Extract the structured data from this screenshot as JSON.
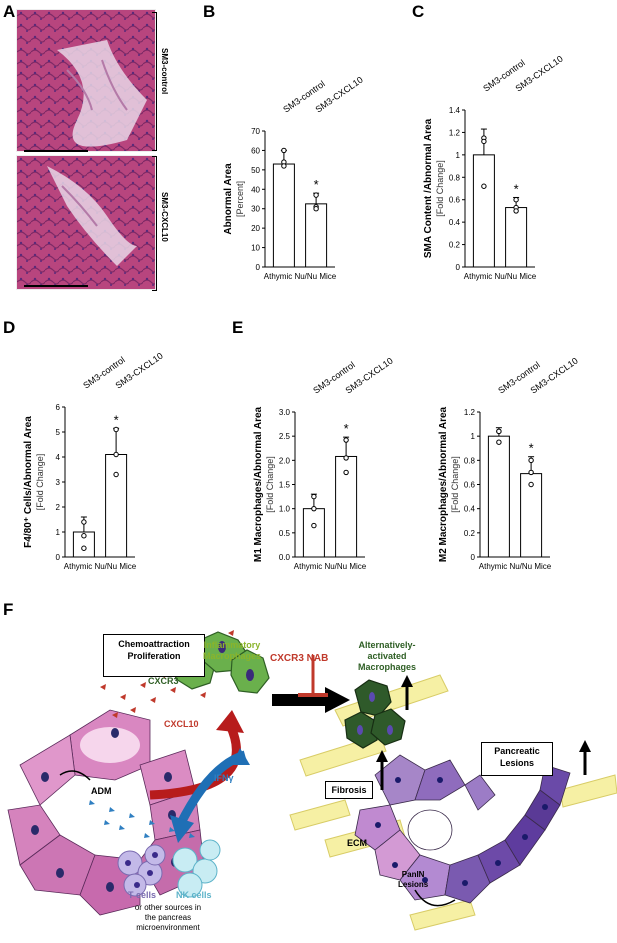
{
  "panels": {
    "A": "A",
    "B": "B",
    "C": "C",
    "D": "D",
    "E": "E",
    "F": "F"
  },
  "histology": {
    "top_label": "SM3-control",
    "bottom_label": "SM3-CXCL10"
  },
  "legend": {
    "control": "SM3-control",
    "cxcl10": "SM3-CXCL10"
  },
  "xlabel": "Athymic Nu/Nu Mice",
  "star": "*",
  "chart_data": [
    {
      "id": "B",
      "type": "bar",
      "categories": [
        "SM3-control",
        "SM3-CXCL10"
      ],
      "values": [
        53,
        32.5
      ],
      "errors": [
        7,
        5.5
      ],
      "points": [
        [
          60,
          54,
          52
        ],
        [
          37,
          31,
          30
        ]
      ],
      "ylim": [
        0,
        70
      ],
      "ticks": [
        0,
        10,
        20,
        30,
        40,
        50,
        60,
        70
      ],
      "ylabel": "Abnormal Area",
      "yunit": "[Percent]",
      "xlabel": "Athymic Nu/Nu Mice",
      "significant": [
        false,
        true
      ]
    },
    {
      "id": "C",
      "type": "bar",
      "categories": [
        "SM3-control",
        "SM3-CXCL10"
      ],
      "values": [
        1.0,
        0.53
      ],
      "errors": [
        0.23,
        0.09
      ],
      "points": [
        [
          1.15,
          1.12,
          0.72
        ],
        [
          0.6,
          0.53,
          0.5
        ]
      ],
      "ylim": [
        0,
        1.4
      ],
      "ticks": [
        0,
        0.2,
        0.4,
        0.6,
        0.8,
        1,
        1.2,
        1.4
      ],
      "ylabel": "SMA Content /Abnormal Area",
      "yunit": "[Fold Change]",
      "xlabel": "Athymic Nu/Nu Mice",
      "significant": [
        false,
        true
      ]
    },
    {
      "id": "D",
      "type": "bar",
      "categories": [
        "SM3-control",
        "SM3-CXCL10"
      ],
      "values": [
        1.0,
        4.1
      ],
      "errors": [
        0.6,
        1.05
      ],
      "points": [
        [
          1.4,
          0.85,
          0.35
        ],
        [
          5.1,
          4.1,
          3.3
        ]
      ],
      "ylim": [
        0,
        6
      ],
      "ticks": [
        0,
        1,
        2,
        3,
        4,
        5,
        6
      ],
      "ylabel": "F4/80⁺ Cells/Abnormal Area",
      "yunit": "[Fold Change]",
      "xlabel": "Athymic Nu/Nu Mice",
      "significant": [
        false,
        true
      ]
    },
    {
      "id": "E1",
      "type": "bar",
      "categories": [
        "SM3-control",
        "SM3-CXCL10"
      ],
      "values": [
        1.0,
        2.08
      ],
      "errors": [
        0.3,
        0.4
      ],
      "points": [
        [
          1.25,
          1.0,
          0.65
        ],
        [
          2.42,
          2.05,
          1.75
        ]
      ],
      "ylim": [
        0,
        3.0
      ],
      "ticks": [
        0,
        0.5,
        1.0,
        1.5,
        2.0,
        2.5,
        3.0
      ],
      "ylabel": "M1 Macrophages/Abnormal Area",
      "yunit": "[Fold Change]",
      "xlabel": "Athymic Nu/Nu Mice",
      "significant": [
        false,
        true
      ]
    },
    {
      "id": "E2",
      "type": "bar",
      "categories": [
        "SM3-control",
        "SM3-CXCL10"
      ],
      "values": [
        1.0,
        0.69
      ],
      "errors": [
        0.07,
        0.14
      ],
      "points": [
        [
          1.04,
          1.04,
          0.95
        ],
        [
          0.8,
          0.7,
          0.6
        ]
      ],
      "ylim": [
        0,
        1.2
      ],
      "ticks": [
        0,
        0.2,
        0.4,
        0.6,
        0.8,
        1,
        1.2
      ],
      "ylabel": "M2 Macrophages/Abnormal Area",
      "yunit": "[Fold Change]",
      "xlabel": "Athymic Nu/Nu Mice",
      "significant": [
        false,
        true
      ]
    }
  ],
  "diagram": {
    "chemo_box": "Chemoattraction\nProliferation",
    "inflam": "Inflammatory\nMacrophages",
    "cxcr3": "CXCR3",
    "cxcl10": "CXCL10",
    "ifng": "IFNγ",
    "adm": "ADM",
    "tcells": "T cells",
    "nkcells": "NK cells",
    "other": "or other sources in\nthe pancreas\nmicroenvironment",
    "cxcr3nab": "CXCR3 NAB",
    "altact": "Alternatively-\nactivated\nMacrophages",
    "pancreatic": "Pancreatic\nLesions",
    "fibrosis": "Fibrosis",
    "ecm": "ECM",
    "panin": "PanIN\nLesions"
  },
  "colors": {
    "green": "#6ab04c",
    "darkgreen": "#2e5e24",
    "red": "#c0392b",
    "blue": "#2f7fc1",
    "pink": "#d86aa8",
    "purple": "#7a4fb0",
    "yellow": "#f6f0a4",
    "labelgreen": "#8ab42b"
  }
}
